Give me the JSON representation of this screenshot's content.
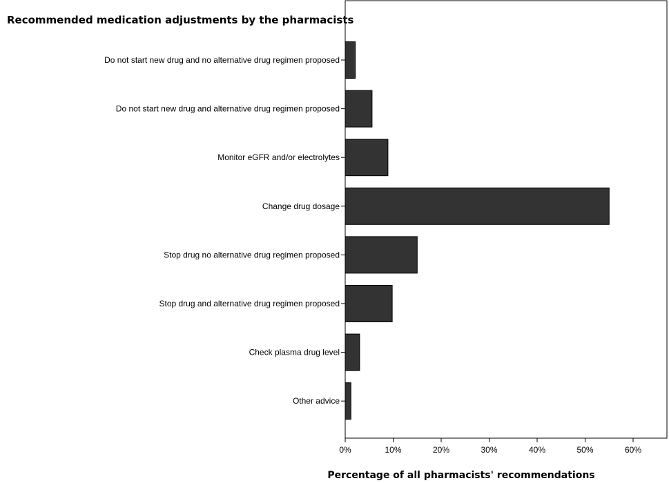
{
  "chart_data": {
    "type": "bar",
    "orientation": "horizontal",
    "title": "Recommended medication adjustments by the pharmacists",
    "xlabel": "Percentage of all pharmacists' recommendations",
    "ylabel": "",
    "xlim": [
      0,
      66
    ],
    "xticks": [
      0,
      10,
      20,
      30,
      40,
      50,
      60
    ],
    "xtick_labels": [
      "0%",
      "10%",
      "20%",
      "30%",
      "40%",
      "50%",
      "60%"
    ],
    "categories": [
      "Do not start new drug and no alternative drug regimen proposed",
      "Do not start new drug and alternative drug regimen proposed",
      "Monitor eGFR and/or electrolytes",
      "Change drug dosage",
      "Stop drug no alternative drug regimen proposed",
      "Stop drug and alternative drug regimen proposed",
      "Check plasma drug level",
      "Other advice"
    ],
    "values": [
      2.1,
      5.6,
      8.9,
      55.0,
      15.0,
      9.8,
      3.0,
      1.2
    ],
    "bar_color": "#333333",
    "bar_edge_color": "#000000",
    "grid": false,
    "legend": "none"
  }
}
